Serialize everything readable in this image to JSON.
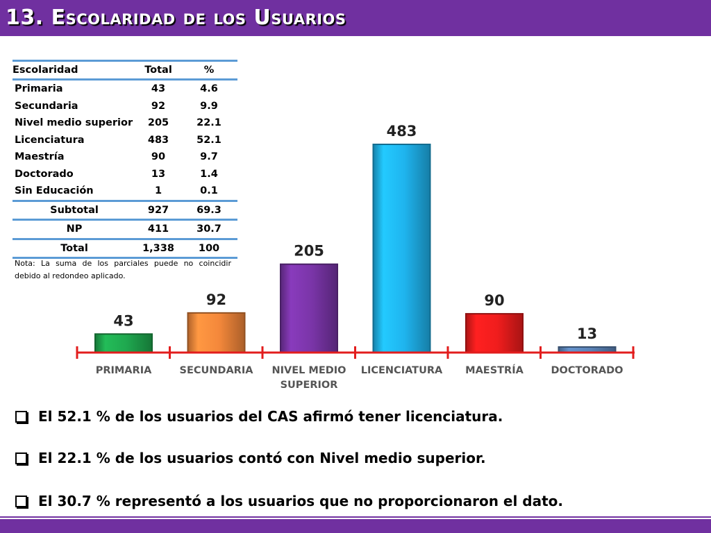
{
  "header": {
    "title": "13. Escolaridad de los Usuarios"
  },
  "table": {
    "headers": [
      "Escolaridad",
      "Total",
      "%"
    ],
    "rows": [
      [
        "Primaria",
        "43",
        "4.6"
      ],
      [
        "Secundaria",
        "92",
        "9.9"
      ],
      [
        "Nivel medio superior",
        "205",
        "22.1"
      ],
      [
        "Licenciatura",
        "483",
        "52.1"
      ],
      [
        "Maestría",
        "90",
        "9.7"
      ],
      [
        "Doctorado",
        "13",
        "1.4"
      ],
      [
        "Sin Educación",
        "1",
        "0.1"
      ]
    ],
    "summary": [
      [
        "Subtotal",
        "927",
        "69.3"
      ],
      [
        "NP",
        "411",
        "30.7"
      ],
      [
        "Total",
        "1,338",
        "100"
      ]
    ],
    "note": "Nota: La suma de los parciales puede no coincidir debido al redondeo aplicado."
  },
  "chart_data": {
    "type": "bar",
    "categories": [
      "PRIMARIA",
      "SECUNDARIA",
      "NIVEL MEDIO|SUPERIOR",
      "LICENCIATURA",
      "MAESTRÍA",
      "DOCTORADO"
    ],
    "values": [
      43,
      92,
      205,
      483,
      90,
      13
    ],
    "data_labels": [
      "43",
      "92",
      "205",
      "483",
      "90",
      "13"
    ],
    "colors": [
      "#1fa84f",
      "#f4883b",
      "#7a35a8",
      "#1fb4ee",
      "#f01d1d",
      "#5b84b8"
    ],
    "axis_color": "#e21d1d",
    "ylim": [
      0,
      483
    ],
    "title": "",
    "xlabel": "",
    "ylabel": ""
  },
  "bullets": [
    "El 52.1 % de los usuarios del CAS afirmó tener licenciatura.",
    "El 22.1 % de los usuarios contó con Nivel medio superior.",
    "El 30.7 % representó a los usuarios que no proporcionaron el dato."
  ],
  "colors": {
    "accent": "#7030a0",
    "table_rule": "#5b9bd5"
  }
}
